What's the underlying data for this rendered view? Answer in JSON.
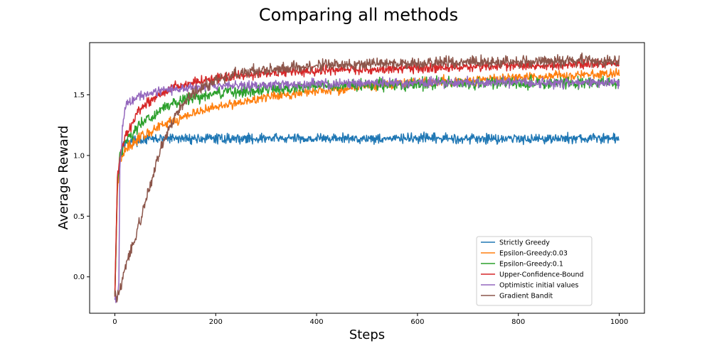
{
  "chart_data": {
    "type": "line",
    "title": "Comparing all methods",
    "xlabel": "Steps",
    "ylabel": "Average Reward",
    "xlim": [
      -50,
      1050
    ],
    "ylim": [
      -0.3,
      1.93
    ],
    "xticks": [
      0,
      200,
      400,
      600,
      800,
      1000
    ],
    "yticks": [
      0.0,
      0.5,
      1.0,
      1.5
    ],
    "xtick_labels": [
      "0",
      "200",
      "400",
      "600",
      "800",
      "1000"
    ],
    "ytick_labels": [
      "0.0",
      "0.5",
      "1.0",
      "1.5"
    ],
    "grid": false,
    "legend_position": "lower-right",
    "series": [
      {
        "name": "Strictly Greedy",
        "color": "#1f77b4",
        "noise": 0.025,
        "x": [
          0,
          5,
          10,
          15,
          20,
          30,
          50,
          100,
          200,
          400,
          600,
          800,
          1000
        ],
        "y": [
          -0.15,
          0.75,
          1.0,
          1.07,
          1.1,
          1.12,
          1.13,
          1.14,
          1.14,
          1.14,
          1.14,
          1.14,
          1.14
        ]
      },
      {
        "name": "Epsilon-Greedy:0.03",
        "color": "#ff7f0e",
        "noise": 0.025,
        "x": [
          0,
          5,
          10,
          20,
          50,
          100,
          150,
          200,
          300,
          400,
          500,
          600,
          700,
          800,
          900,
          1000
        ],
        "y": [
          -0.15,
          0.7,
          0.95,
          1.05,
          1.15,
          1.26,
          1.34,
          1.4,
          1.48,
          1.53,
          1.57,
          1.6,
          1.62,
          1.64,
          1.66,
          1.68
        ]
      },
      {
        "name": "Epsilon-Greedy:0.1",
        "color": "#2ca02c",
        "noise": 0.03,
        "x": [
          0,
          5,
          10,
          20,
          50,
          100,
          150,
          200,
          300,
          400,
          500,
          600,
          800,
          1000
        ],
        "y": [
          -0.15,
          0.75,
          1.0,
          1.12,
          1.25,
          1.4,
          1.47,
          1.51,
          1.55,
          1.57,
          1.58,
          1.59,
          1.6,
          1.6
        ]
      },
      {
        "name": "Upper-Confidence-Bound",
        "color": "#d62728",
        "noise": 0.025,
        "x": [
          0,
          5,
          10,
          20,
          50,
          100,
          150,
          200,
          300,
          400,
          500,
          600,
          700,
          800,
          900,
          1000
        ],
        "y": [
          -0.15,
          0.8,
          1.0,
          1.15,
          1.38,
          1.54,
          1.6,
          1.64,
          1.68,
          1.7,
          1.71,
          1.72,
          1.73,
          1.74,
          1.75,
          1.76
        ]
      },
      {
        "name": "Optimistic initial values",
        "color": "#9467bd",
        "noise": 0.025,
        "x": [
          0,
          5,
          8,
          10,
          15,
          20,
          30,
          50,
          80,
          100,
          150,
          200,
          400,
          600,
          800,
          1000
        ],
        "y": [
          -0.2,
          -0.15,
          -0.05,
          0.9,
          1.2,
          1.4,
          1.45,
          1.5,
          1.53,
          1.54,
          1.56,
          1.57,
          1.59,
          1.6,
          1.6,
          1.6
        ]
      },
      {
        "name": "Gradient Bandit",
        "color": "#8c564b",
        "noise": 0.03,
        "x": [
          0,
          5,
          10,
          20,
          30,
          50,
          70,
          90,
          110,
          130,
          150,
          200,
          250,
          300,
          400,
          500,
          600,
          700,
          800,
          900,
          1000
        ],
        "y": [
          -0.15,
          -0.18,
          -0.1,
          0.05,
          0.2,
          0.45,
          0.75,
          1.05,
          1.25,
          1.4,
          1.5,
          1.62,
          1.68,
          1.71,
          1.74,
          1.75,
          1.76,
          1.77,
          1.77,
          1.78,
          1.78
        ]
      }
    ]
  }
}
